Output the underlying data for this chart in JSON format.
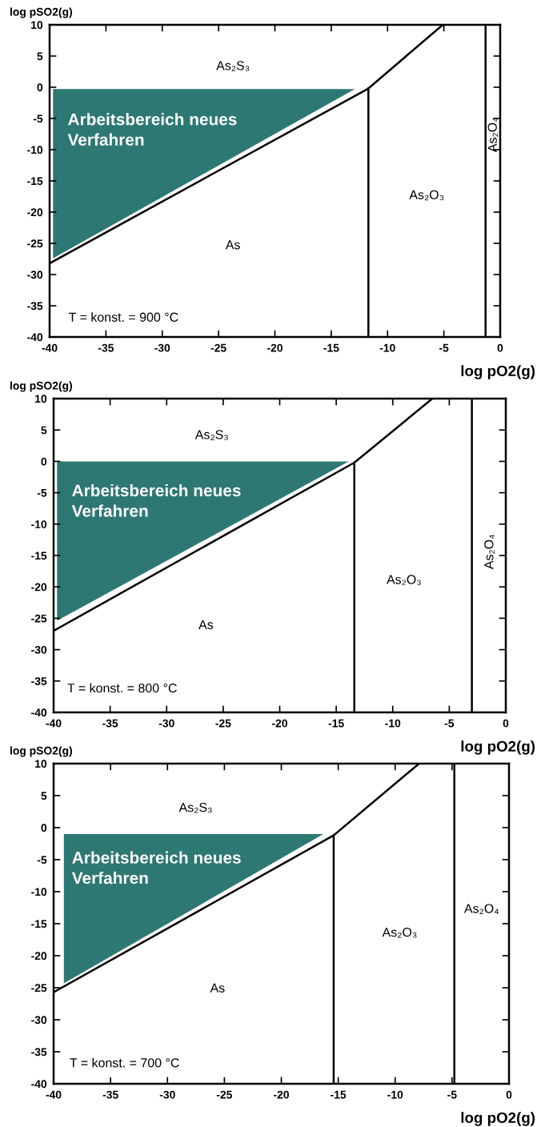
{
  "chart_data": [
    {
      "type": "line",
      "xlabel": "log pO2(g)",
      "ylabel": "log pSO2(g)",
      "xlim": [
        -40,
        0
      ],
      "ylim": [
        -40,
        10
      ],
      "xticks": [
        -40,
        -35,
        -30,
        -25,
        -20,
        -15,
        -10,
        -5,
        0
      ],
      "yticks": [
        -40,
        -35,
        -30,
        -25,
        -20,
        -15,
        -10,
        -5,
        0,
        5,
        10
      ],
      "series": [
        {
          "type": "area",
          "color": "#2e7873",
          "x": [
            -39.7,
            -12.9,
            -39.7
          ],
          "values": [
            -0.3,
            -0.3,
            -27.4
          ]
        },
        {
          "color": "#000000",
          "x": [
            -40,
            -11.7,
            -5.1
          ],
          "values": [
            -28.2,
            -0.2,
            10
          ]
        },
        {
          "color": "#000000",
          "x": [
            -11.7,
            -11.7
          ],
          "values": [
            -0.2,
            -40
          ]
        },
        {
          "color": "#000000",
          "x": [
            -1.3,
            -1.3
          ],
          "values": [
            10,
            -40
          ]
        }
      ],
      "annotations": [
        "As₂S₃",
        "As",
        "As₂O₃",
        "As₂O₄",
        "Arbeitsbereich neues\nVerfahren",
        "T = konst. = 900 °C"
      ]
    },
    {
      "type": "line",
      "xlabel": "log pO2(g)",
      "ylabel": "log pSO2(g)",
      "xlim": [
        -40,
        0
      ],
      "ylim": [
        -40,
        10
      ],
      "xticks": [
        -40,
        -35,
        -30,
        -25,
        -20,
        -15,
        -10,
        -5,
        0
      ],
      "yticks": [
        -40,
        -35,
        -30,
        -25,
        -20,
        -15,
        -10,
        -5,
        0,
        5,
        10
      ],
      "series": [
        {
          "type": "area",
          "color": "#2e7873",
          "x": [
            -39.7,
            -13.9,
            -39.7
          ],
          "values": [
            0,
            0,
            -25.4
          ]
        },
        {
          "color": "#000000",
          "x": [
            -40,
            -13.4,
            -6.5
          ],
          "values": [
            -27,
            -0.2,
            10
          ]
        },
        {
          "color": "#000000",
          "x": [
            -13.4,
            -13.4
          ],
          "values": [
            -0.2,
            -40
          ]
        },
        {
          "color": "#000000",
          "x": [
            -3,
            -3
          ],
          "values": [
            10,
            -40
          ]
        }
      ],
      "annotations": [
        "As₂S₃",
        "As",
        "As₂O₃",
        "As₂O₄",
        "Arbeitsbereich neues\nVerfahren",
        "T = konst. = 800 °C"
      ]
    },
    {
      "type": "line",
      "xlabel": "log pO2(g)",
      "ylabel": "log pSO2(g)",
      "xlim": [
        -40,
        0
      ],
      "ylim": [
        -40,
        10
      ],
      "xticks": [
        -40,
        -35,
        -30,
        -25,
        -20,
        -15,
        -10,
        -5,
        0
      ],
      "yticks": [
        -40,
        -35,
        -30,
        -25,
        -20,
        -15,
        -10,
        -5,
        0,
        5,
        10
      ],
      "series": [
        {
          "type": "area",
          "color": "#2e7873",
          "x": [
            -39.1,
            -16.3,
            -39.1
          ],
          "values": [
            -1,
            -1,
            -24.3
          ]
        },
        {
          "color": "#000000",
          "x": [
            -40,
            -15.4,
            -7.9
          ],
          "values": [
            -25.7,
            -1.2,
            10
          ]
        },
        {
          "color": "#000000",
          "x": [
            -15.4,
            -15.4
          ],
          "values": [
            -1.2,
            -40
          ]
        },
        {
          "color": "#000000",
          "x": [
            -4.8,
            -4.8
          ],
          "values": [
            10,
            -40
          ]
        }
      ],
      "annotations": [
        "As₂S₃",
        "As",
        "As₂O₃",
        "As₂O₄",
        "Arbeitsbereich neues\nVerfahren",
        "T = konst. = 700 °C"
      ]
    }
  ]
}
